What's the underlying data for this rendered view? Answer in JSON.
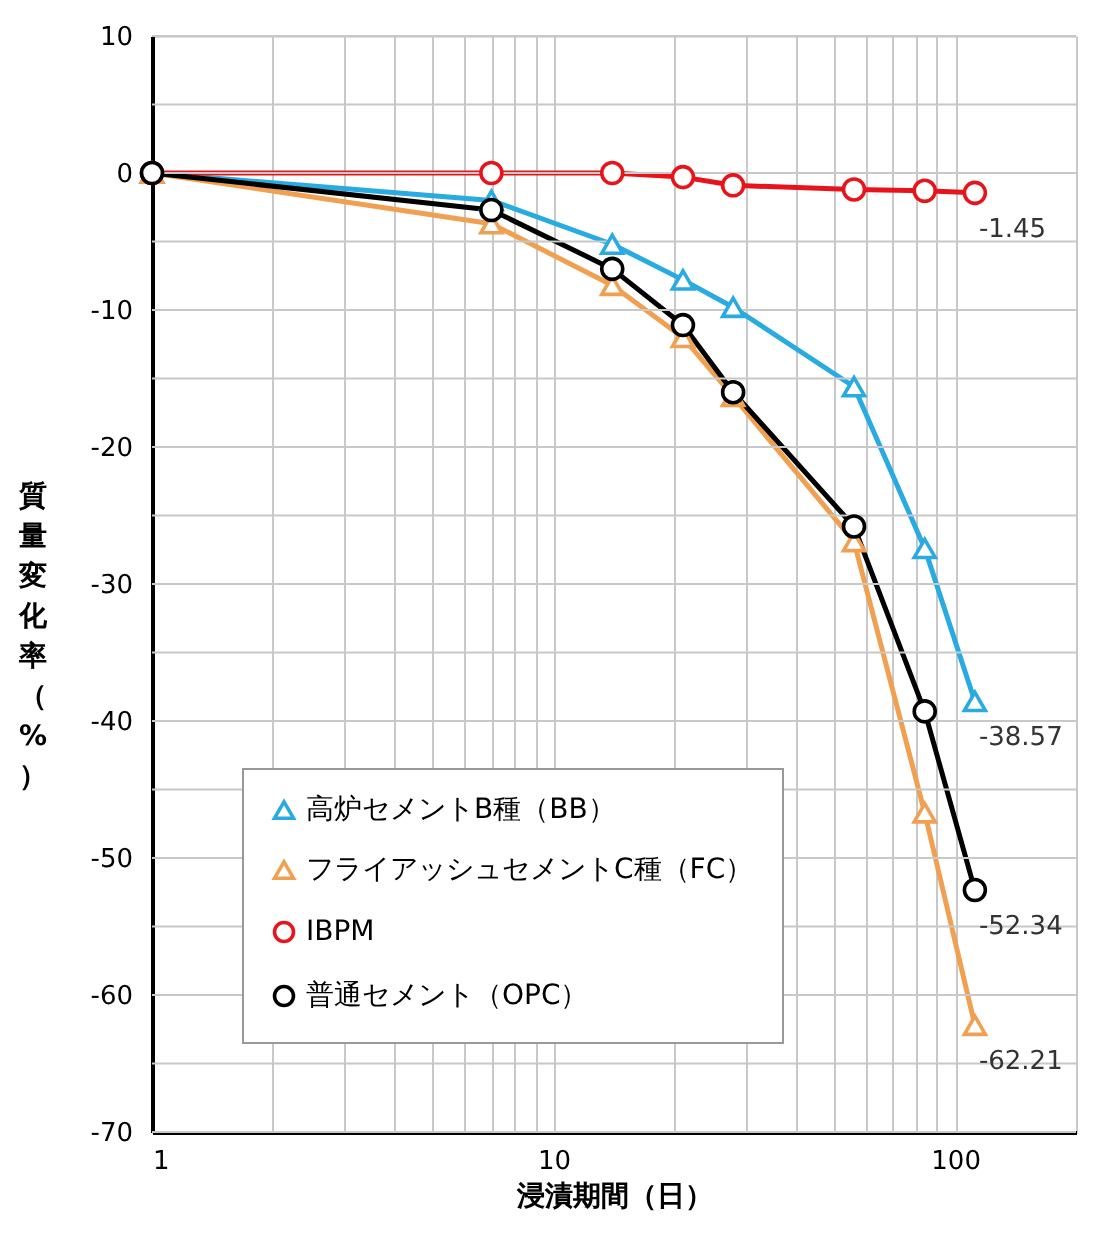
{
  "chart_data": {
    "type": "line",
    "xlabel": "浸漬期間（日）",
    "ylabel": "質量変化率（%）",
    "x": [
      1,
      7,
      14,
      21,
      28,
      56,
      84,
      112
    ],
    "series": [
      {
        "name": "高炉セメントB種（BB）",
        "color": "#29abe2",
        "marker": "triangle",
        "values": [
          0,
          -2.0,
          -5.2,
          -7.8,
          -9.8,
          -15.6,
          -27.4,
          -38.57
        ],
        "value_labels": [
          null,
          null,
          null,
          null,
          null,
          null,
          null,
          "-38.57"
        ]
      },
      {
        "name": "フライアッシュセメントC種（FC）",
        "color": "#f0a050",
        "marker": "triangle",
        "values": [
          0,
          -3.7,
          -8.2,
          -12.0,
          -16.3,
          -26.9,
          -46.7,
          -62.21
        ],
        "value_labels": [
          null,
          null,
          null,
          null,
          null,
          null,
          null,
          "-62.21"
        ]
      },
      {
        "name": "IBPM",
        "color": "#e8141b",
        "marker": "circle",
        "values": [
          0,
          0,
          0,
          -0.3,
          -0.9,
          -1.2,
          -1.3,
          -1.45
        ],
        "value_labels": [
          null,
          null,
          null,
          null,
          null,
          null,
          null,
          "-1.45"
        ]
      },
      {
        "name": "普通セメント（OPC）",
        "color": "#000000",
        "marker": "circle",
        "values": [
          0,
          -2.7,
          -7.0,
          -11.1,
          -16.0,
          -25.8,
          -39.3,
          -52.34
        ],
        "value_labels": [
          null,
          null,
          null,
          null,
          null,
          null,
          null,
          "-52.34"
        ]
      }
    ],
    "log": "x",
    "xlim": [
      1,
      200
    ],
    "ylim": [
      -70,
      10
    ],
    "xticks": [
      1,
      {
        "value": 2,
        "label": null
      },
      {
        "value": 3,
        "label": null
      },
      {
        "value": 4,
        "label": null
      },
      {
        "value": 5,
        "label": null
      },
      {
        "value": 6,
        "label": null
      },
      {
        "value": 7,
        "label": null
      },
      {
        "value": 8,
        "label": null
      },
      {
        "value": 9,
        "label": null
      },
      10,
      {
        "value": 20,
        "label": null
      },
      {
        "value": 30,
        "label": null
      },
      {
        "value": 40,
        "label": null
      },
      {
        "value": 50,
        "label": null
      },
      {
        "value": 60,
        "label": null
      },
      {
        "value": 70,
        "label": null
      },
      {
        "value": 80,
        "label": null
      },
      {
        "value": 90,
        "label": null
      },
      100,
      {
        "value": 200,
        "label": null
      }
    ],
    "yticks": [
      -70,
      {
        "value": -65,
        "label": null
      },
      -60,
      {
        "value": -55,
        "label": null
      },
      -50,
      {
        "value": -45,
        "label": null
      },
      -40,
      {
        "value": -35,
        "label": null
      },
      -30,
      {
        "value": -25,
        "label": null
      },
      -20,
      {
        "value": -15,
        "label": null
      },
      -10,
      {
        "value": -5,
        "label": null
      },
      0,
      {
        "value": 5,
        "label": null
      },
      10
    ],
    "grid": true,
    "legend": "bottom left",
    "line_style": "solid"
  }
}
